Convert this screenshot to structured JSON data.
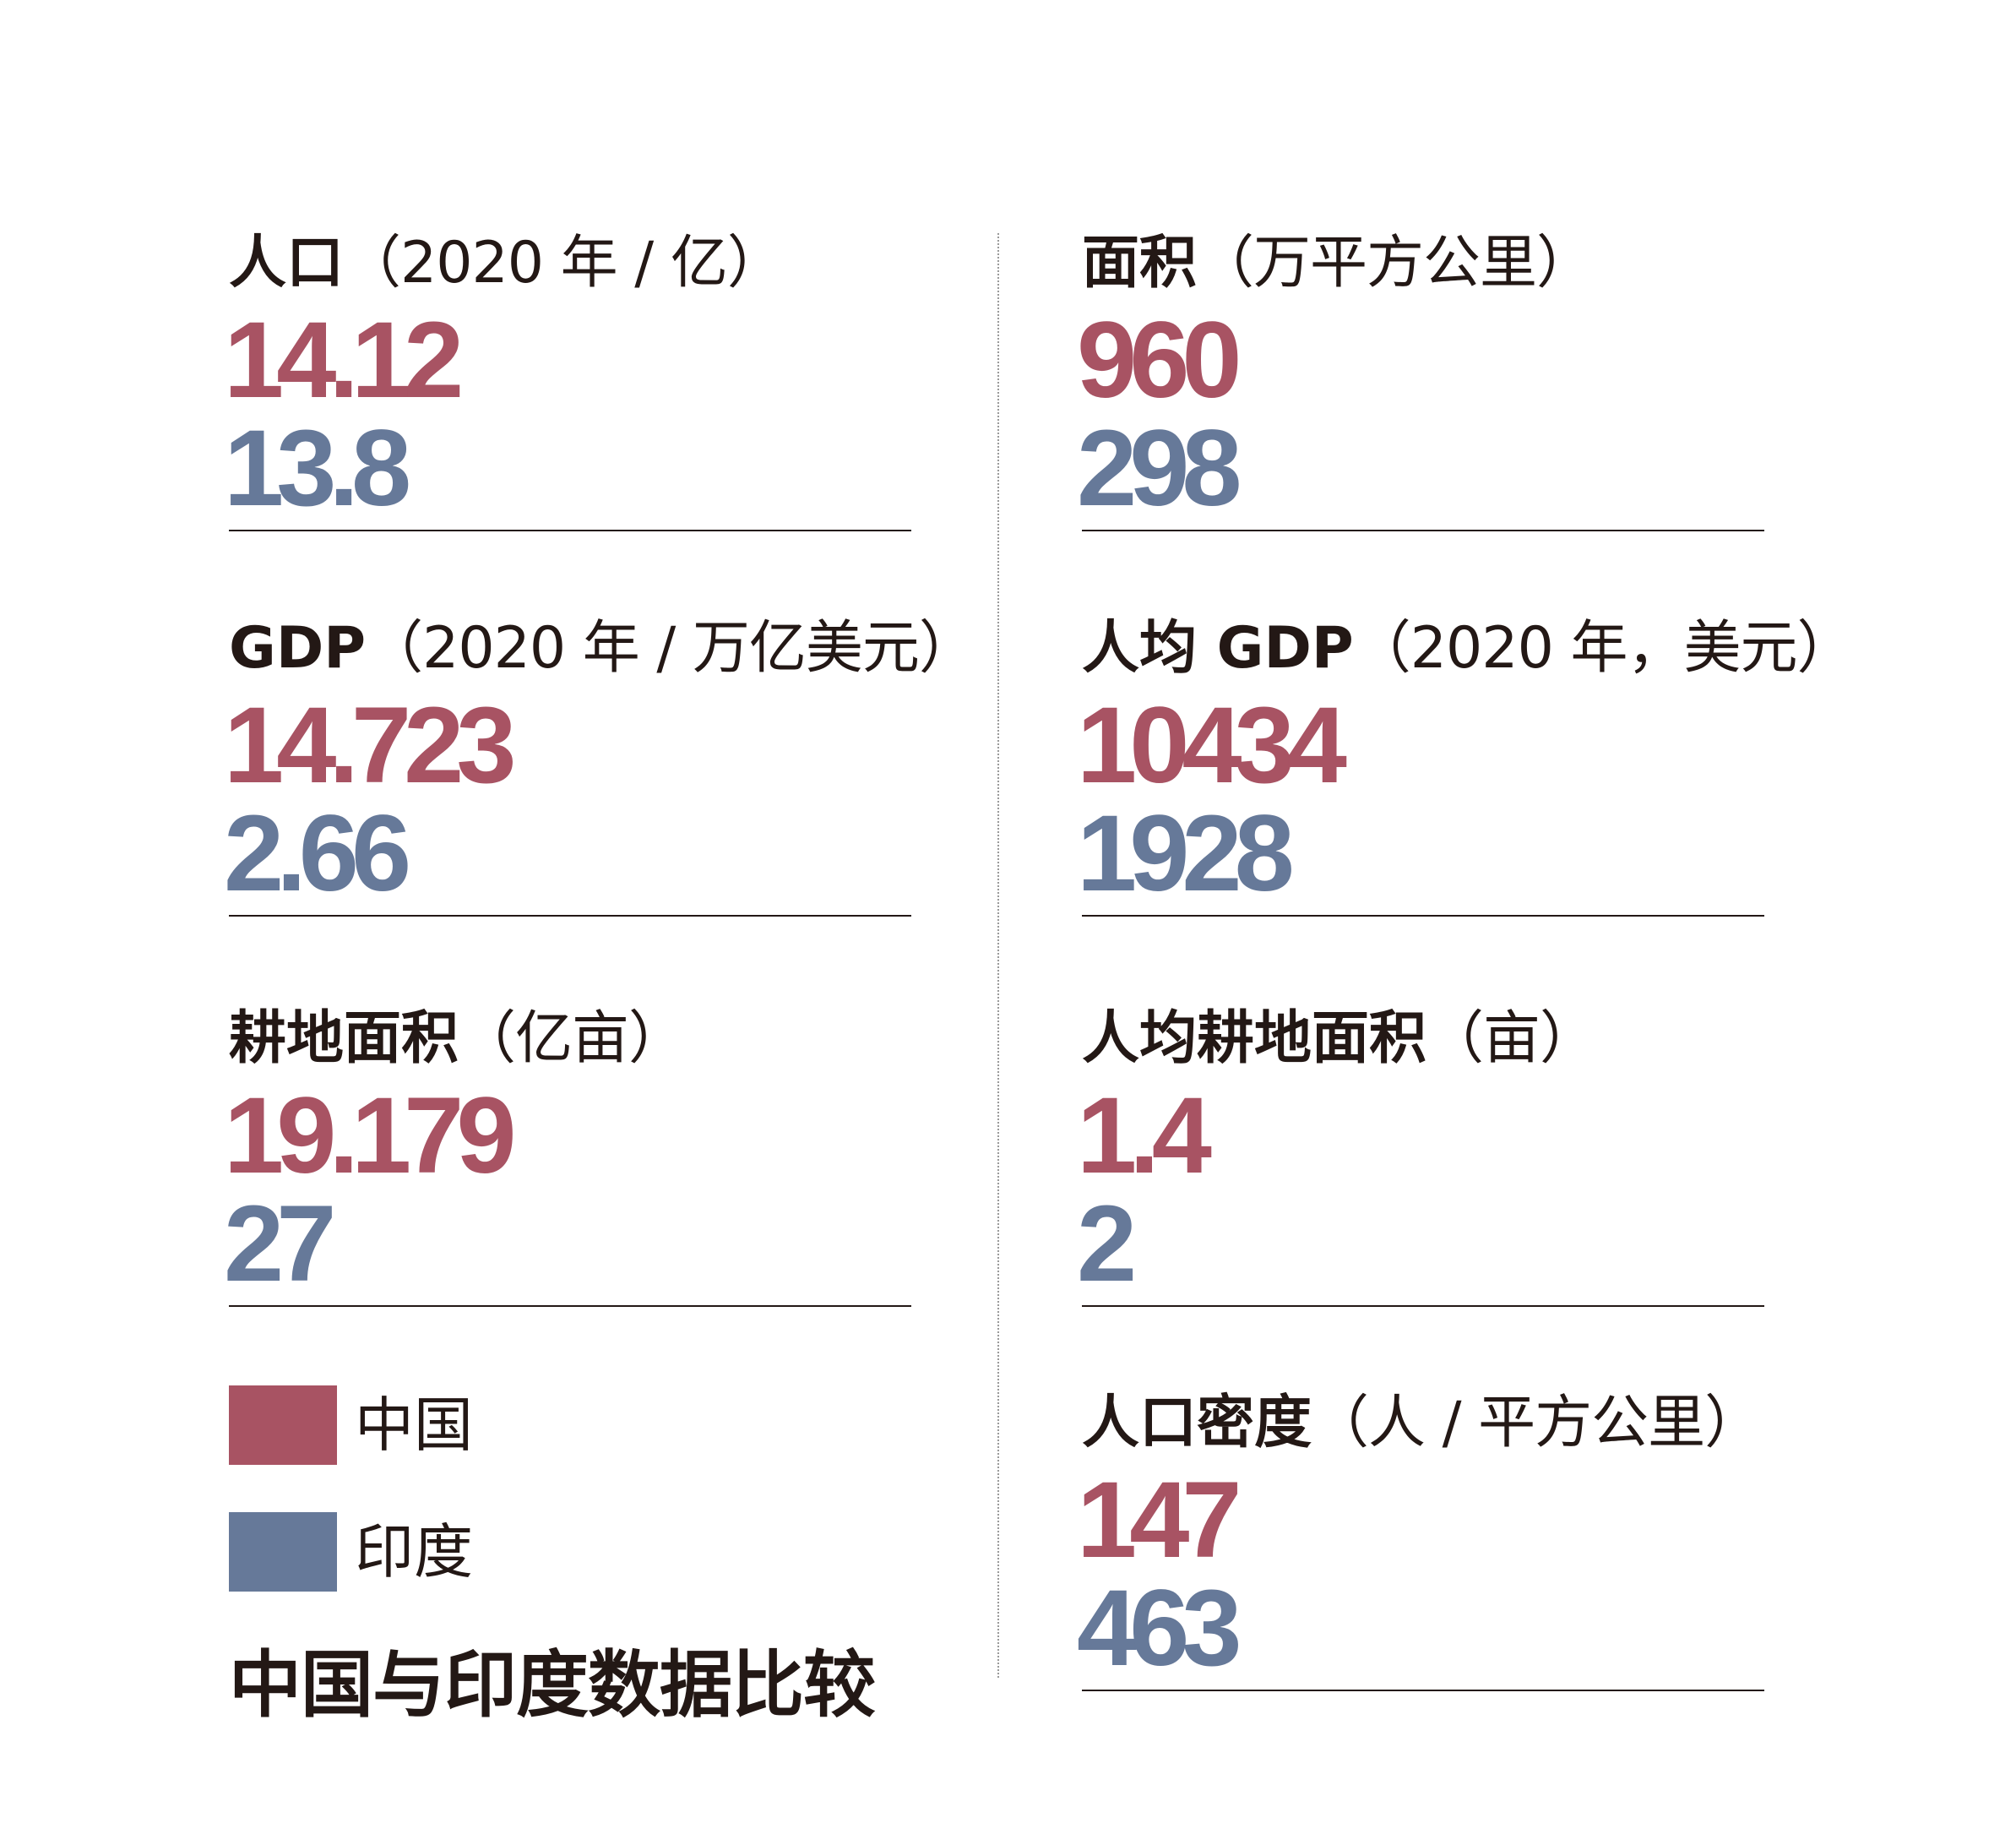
{
  "title": "中国与印度数据比较",
  "legend": [
    {
      "label": "中国",
      "color": "#a85363"
    },
    {
      "label": "印度",
      "color": "#667999"
    }
  ],
  "chart_data": {
    "type": "table",
    "title": "中国与印度数据比较",
    "series": [
      {
        "name": "中国",
        "color": "#a85363"
      },
      {
        "name": "印度",
        "color": "#667999"
      }
    ],
    "metrics": [
      {
        "label": "人口",
        "unit": "（2020 年 / 亿）",
        "china": "14.12",
        "india": "13.8"
      },
      {
        "label": "面积",
        "unit": "（万平方公里）",
        "china": "960",
        "india": "298"
      },
      {
        "label": "GDP",
        "unit": "（2020 年 / 万亿美元）",
        "china": "14.723",
        "india": "2.66"
      },
      {
        "label": "人均 GDP",
        "unit": "（2020 年，美元）",
        "china": "10434",
        "india": "1928"
      },
      {
        "label": "耕地面积",
        "unit": "（亿亩）",
        "china": "19.179",
        "india": "27"
      },
      {
        "label": "人均耕地面积",
        "unit": "（亩）",
        "china": "1.4",
        "india": "2"
      },
      {
        "label": "人口密度",
        "unit": "（人 / 平方公里）",
        "china": "147",
        "india": "463"
      }
    ]
  }
}
